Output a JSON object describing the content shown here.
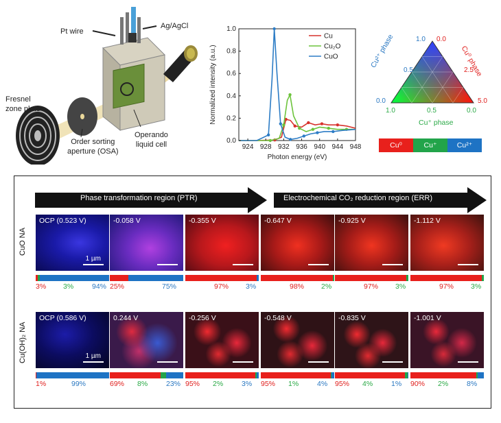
{
  "schematic": {
    "pt_wire": "Pt wire",
    "ag_agcl": "Ag/AgCl",
    "fresnel": "Fresnel\nzone plate",
    "osa": "Order sorting\naperture (OSA)",
    "cell": "Operando\nliquid cell"
  },
  "chart_data": {
    "type": "line",
    "xlabel": "Photon energy (eV)",
    "ylabel": "Normalized intensity (a.u.)",
    "xlim": [
      922,
      948
    ],
    "ylim": [
      0,
      1.0
    ],
    "xticks": [
      "924",
      "928",
      "932",
      "936",
      "940",
      "944",
      "948"
    ],
    "yticks": [
      "0.0",
      "0.2",
      "0.4",
      "0.6",
      "0.8",
      "1.0"
    ],
    "legend": [
      "Cu",
      "Cu₂O",
      "CuO"
    ],
    "series": [
      {
        "name": "Cu",
        "color": "#d7322c",
        "x": [
          922,
          926,
          930,
          931.5,
          932.5,
          933.5,
          934.5,
          936,
          937.5,
          939,
          940.5,
          942,
          944,
          946,
          948
        ],
        "y": [
          0.0,
          0.0,
          0.005,
          0.03,
          0.19,
          0.18,
          0.13,
          0.12,
          0.16,
          0.14,
          0.15,
          0.14,
          0.14,
          0.13,
          0.11
        ]
      },
      {
        "name": "Cu₂O",
        "color": "#6cc33b",
        "x": [
          922,
          926,
          929,
          931,
          932,
          932.8,
          933.4,
          934.2,
          935.5,
          937,
          938.5,
          940,
          942,
          944,
          946,
          948
        ],
        "y": [
          0.0,
          0.0,
          0.0,
          0.02,
          0.14,
          0.36,
          0.41,
          0.22,
          0.11,
          0.08,
          0.1,
          0.12,
          0.11,
          0.1,
          0.1,
          0.1
        ]
      },
      {
        "name": "CuO",
        "color": "#2c7cc5",
        "x": [
          922,
          926,
          928.6,
          929.4,
          929.9,
          930.5,
          931.3,
          932.3,
          933.5,
          935,
          936.5,
          938,
          939.5,
          941,
          943,
          945,
          948
        ],
        "y": [
          0.0,
          0.0,
          0.05,
          0.55,
          1.0,
          0.6,
          0.15,
          0.03,
          0.01,
          0.02,
          0.04,
          0.06,
          0.07,
          0.08,
          0.08,
          0.09,
          0.1
        ]
      }
    ]
  },
  "ternary": {
    "left_axis": "Cu²⁺ phase",
    "right_axis": "Cu⁰ phase",
    "bottom_axis": "Cu⁺ phase",
    "left_ticks": [
      "1.0",
      "0.5",
      "0.0"
    ],
    "top_right": "0.0",
    "right_ticks": [
      "2.5",
      "5.0"
    ],
    "bottom_ticks": [
      "1.0",
      "0.5",
      "0.0"
    ],
    "bottom_left": "0.0",
    "legend": [
      {
        "label": "Cu⁰",
        "color": "#e8201c"
      },
      {
        "label": "Cu⁺",
        "color": "#22a44a"
      },
      {
        "label": "Cu²⁺",
        "color": "#1e73c4"
      }
    ]
  },
  "regions": {
    "ptr": "Phase transformation  region (PTR)",
    "err": "Electrochemical CO₂ reduction region (ERR)"
  },
  "rows": [
    {
      "label": "CuO NA",
      "scale": "1 µm",
      "images": [
        {
          "voltage": "OCP (0.523 V)",
          "bar": [
            3,
            3,
            94
          ],
          "pcts": [
            "3%",
            "3%",
            "94%"
          ],
          "bg": "radial-gradient(ellipse at 60% 50%, #3a36e0 0%, #1a1aa8 40%, #0a0a55 100%)"
        },
        {
          "voltage": "-0.058 V",
          "bar": [
            25,
            0,
            75
          ],
          "pcts": [
            "25%",
            "",
            "75%"
          ],
          "bg": "radial-gradient(ellipse at 55% 60%, #b040e0 0%, #6a2cc0 40%, #181670 100%)"
        },
        {
          "voltage": "-0.355 V",
          "bar": [
            97,
            0,
            3
          ],
          "pcts": [
            "",
            "97%",
            "3%"
          ],
          "bg": "radial-gradient(ellipse at 55% 55%, #f02020 0%, #b8181c 45%, #4a0a12 100%)"
        },
        {
          "voltage": "-0.647 V",
          "bar": [
            98,
            2,
            0
          ],
          "pcts": [
            "",
            "98%",
            "2%"
          ],
          "bg": "radial-gradient(ellipse at 50% 55%, #f03020 0%, #a81a18 45%, #3a0e0e 100%)"
        },
        {
          "voltage": "-0.925 V",
          "bar": [
            97,
            3,
            0
          ],
          "pcts": [
            "",
            "97%",
            "3%"
          ],
          "bg": "radial-gradient(ellipse at 50% 55%, #f03520 0%, #a51c18 45%, #3a100e 100%)"
        },
        {
          "voltage": "-1.112 V",
          "bar": [
            97,
            3,
            0
          ],
          "pcts": [
            "",
            "97%",
            "3%"
          ],
          "bg": "radial-gradient(ellipse at 45% 55%, #f03a22 0%, #a8201a 45%, #3c120e 100%)"
        }
      ]
    },
    {
      "label": "Cu(OH)₂ NA",
      "scale": "1 µm",
      "images": [
        {
          "voltage": "OCP (0.586 V)",
          "bar": [
            1,
            0,
            99
          ],
          "pcts": [
            "1%",
            "",
            "99%"
          ],
          "bg": "radial-gradient(ellipse at 40% 40%, #1c1ca8 0%, #0c0c60 45%, #050520 100%)"
        },
        {
          "voltage": "0.244 V",
          "bar": [
            69,
            8,
            23
          ],
          "pcts": [
            "69%",
            "8%",
            "23%"
          ],
          "bg": "radial-gradient(circle at 30% 35%, #e02a40 0%, transparent 25%), radial-gradient(circle at 65% 55%, #3a5ad0 0%, transparent 35%), radial-gradient(circle at 40% 70%, #c0306a 0%, transparent 30%), #3a1a4a"
        },
        {
          "voltage": "-0.256 V",
          "bar": [
            95,
            2,
            3
          ],
          "pcts": [
            "95%",
            "2%",
            "3%"
          ],
          "bg": "radial-gradient(circle at 30% 35%, #f02a30 0%, transparent 22%), radial-gradient(circle at 70% 55%, #e8283a 0%, transparent 25%), radial-gradient(circle at 45% 75%, #e02a30 0%, transparent 22%), #3a1018"
        },
        {
          "voltage": "-0.548 V",
          "bar": [
            95,
            1,
            4
          ],
          "pcts": [
            "95%",
            "1%",
            "4%"
          ],
          "bg": "radial-gradient(circle at 35% 30%, #f02a30 0%, transparent 22%), radial-gradient(circle at 70% 60%, #e8283a 0%, transparent 25%), radial-gradient(circle at 40% 75%, #e02a30 0%, transparent 22%), #2e1216"
        },
        {
          "voltage": "-0.835 V",
          "bar": [
            95,
            4,
            1
          ],
          "pcts": [
            "95%",
            "4%",
            "1%"
          ],
          "bg": "radial-gradient(circle at 30% 40%, #f02a30 0%, transparent 22%), radial-gradient(circle at 65% 55%, #e8283a 0%, transparent 25%), radial-gradient(circle at 45% 78%, #e02a30 0%, transparent 22%), #2e1418"
        },
        {
          "voltage": "-1.001 V",
          "bar": [
            90,
            2,
            8
          ],
          "pcts": [
            "90%",
            "2%",
            "8%"
          ],
          "bg": "radial-gradient(circle at 35% 35%, #e8283a 0%, transparent 22%), radial-gradient(circle at 70% 55%, #d42848 0%, transparent 25%), radial-gradient(circle at 45% 75%, #d82a3a 0%, transparent 22%), #3a1426"
        }
      ]
    }
  ],
  "colors": {
    "red": "#e8201c",
    "green": "#22a44a",
    "blue": "#1e73c4"
  }
}
